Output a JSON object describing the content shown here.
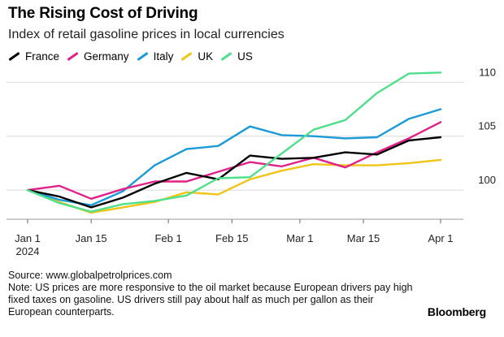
{
  "header": {
    "title": "The Rising Cost of Driving",
    "subtitle": "Index of retail gasoline prices in local currencies"
  },
  "chart_data": {
    "type": "line",
    "title": "The Rising Cost of Driving",
    "subtitle": "Index of retail gasoline prices in local currencies",
    "xlabel": "",
    "ylabel": "",
    "x": [
      "2024-01-01",
      "2024-01-08",
      "2024-01-15",
      "2024-01-22",
      "2024-01-29",
      "2024-02-05",
      "2024-02-12",
      "2024-02-19",
      "2024-02-26",
      "2024-03-04",
      "2024-03-11",
      "2024-03-18",
      "2024-03-25",
      "2024-04-01"
    ],
    "x_ticks": [
      {
        "label": "Jan 1",
        "sublabel": "2024",
        "index": 0
      },
      {
        "label": "Jan 15",
        "sublabel": "",
        "index": 2
      },
      {
        "label": "Feb 1",
        "sublabel": "",
        "index": 4.43
      },
      {
        "label": "Feb 15",
        "sublabel": "",
        "index": 6.43
      },
      {
        "label": "Mar 1",
        "sublabel": "",
        "index": 8.57
      },
      {
        "label": "Mar 15",
        "sublabel": "",
        "index": 10.57
      },
      {
        "label": "Apr 1",
        "sublabel": "",
        "index": 13
      }
    ],
    "y_ticks": [
      100,
      105,
      110
    ],
    "ylim": [
      97.3,
      111.3
    ],
    "grid": true,
    "legend_position": "top-left",
    "series": [
      {
        "name": "France",
        "color": "#000000",
        "values": [
          100,
          99.4,
          98.4,
          99.3,
          100.6,
          101.6,
          101.0,
          103.2,
          102.9,
          103.0,
          103.5,
          103.3,
          104.6,
          104.9
        ]
      },
      {
        "name": "Germany",
        "color": "#e0218a",
        "values": [
          100,
          100.4,
          99.2,
          100.1,
          100.8,
          100.8,
          101.7,
          102.6,
          102.2,
          103.0,
          102.1,
          103.5,
          104.8,
          106.3
        ]
      },
      {
        "name": "Italy",
        "color": "#1a9ad6",
        "values": [
          100,
          99.1,
          98.6,
          99.9,
          102.3,
          103.8,
          104.1,
          105.9,
          105.1,
          105.0,
          104.8,
          104.9,
          106.6,
          107.5
        ]
      },
      {
        "name": "UK",
        "color": "#f2c417",
        "values": [
          100,
          98.9,
          97.9,
          98.4,
          98.9,
          99.8,
          99.6,
          101.0,
          101.8,
          102.4,
          102.3,
          102.3,
          102.5,
          102.8
        ]
      },
      {
        "name": "US",
        "color": "#4fe08c",
        "values": [
          100,
          98.8,
          98.0,
          98.7,
          99.0,
          99.5,
          101.1,
          101.2,
          103.4,
          105.6,
          106.5,
          109.0,
          110.8,
          110.9
        ]
      }
    ]
  },
  "footer": {
    "source": "Source: www.globalpetrolprices.com",
    "note": "Note: US prices are more responsive to the oil market because European drivers pay high fixed taxes on gasoline. US drivers still pay about half as much per gallon as their European counterparts.",
    "brand": "Bloomberg"
  }
}
